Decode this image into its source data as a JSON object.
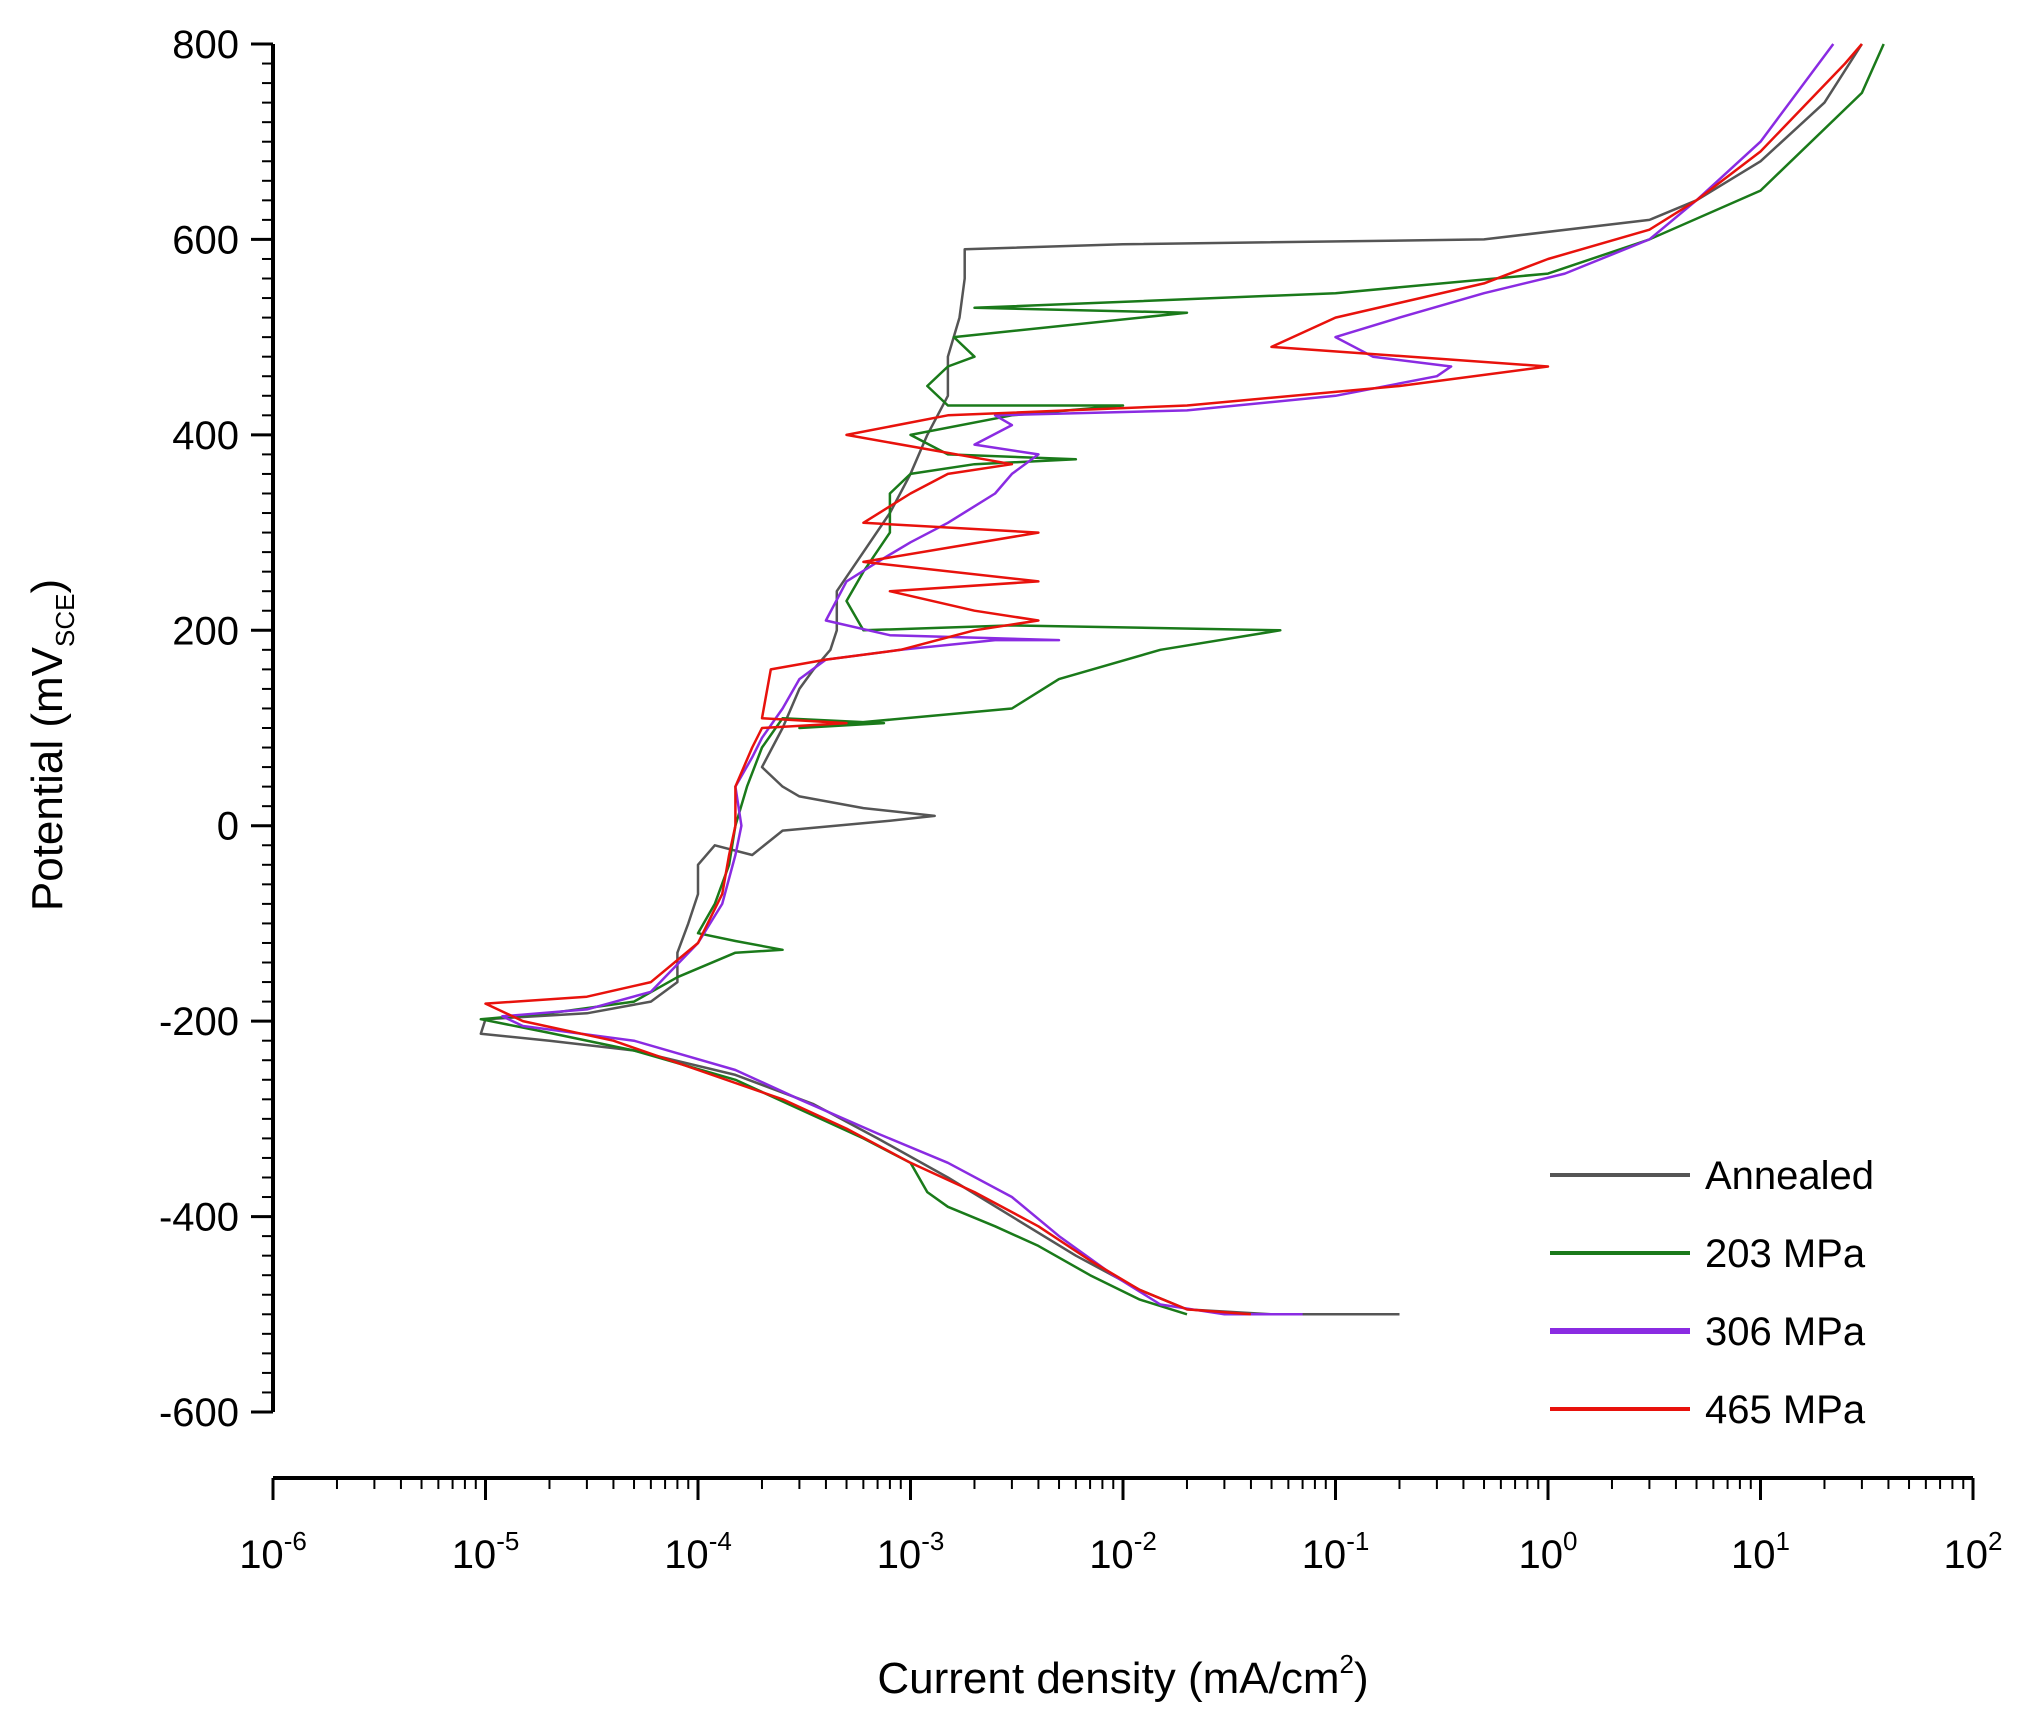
{
  "chart_data": {
    "type": "line",
    "title": "",
    "xlabel": "Current density (mA/cm²)",
    "xlabel_main": "Current density (mA/cm",
    "xlabel_sup": "2",
    "xlabel_end": ")",
    "ylabel": "Potential (mV_SCE)",
    "ylabel_main": "Potential (mV",
    "ylabel_sub": "SCE",
    "ylabel_end": ")",
    "x_scale": "log",
    "xlim": [
      1e-06,
      100
    ],
    "ylim": [
      -600,
      800
    ],
    "x_ticks": [
      {
        "base": "10",
        "exp": "-6",
        "value": 1e-06
      },
      {
        "base": "10",
        "exp": "-5",
        "value": 1e-05
      },
      {
        "base": "10",
        "exp": "-4",
        "value": 0.0001
      },
      {
        "base": "10",
        "exp": "-3",
        "value": 0.001
      },
      {
        "base": "10",
        "exp": "-2",
        "value": 0.01
      },
      {
        "base": "10",
        "exp": "-1",
        "value": 0.1
      },
      {
        "base": "10",
        "exp": "0",
        "value": 1
      },
      {
        "base": "10",
        "exp": "1",
        "value": 10
      },
      {
        "base": "10",
        "exp": "2",
        "value": 100
      }
    ],
    "y_ticks": [
      800,
      600,
      400,
      200,
      0,
      -200,
      -400,
      -600
    ],
    "y_tick_labels": [
      "800",
      "600",
      "400",
      "200",
      "0",
      "-200",
      "-400",
      "-600"
    ],
    "legend_position": "bottom-right",
    "series": [
      {
        "name": "Annealed",
        "color": "#555555",
        "points": [
          [
            0.2,
            -500
          ],
          [
            0.05,
            -500
          ],
          [
            0.02,
            -495
          ],
          [
            0.012,
            -475
          ],
          [
            0.006,
            -440
          ],
          [
            0.003,
            -400
          ],
          [
            0.0015,
            -360
          ],
          [
            0.0007,
            -320
          ],
          [
            0.00035,
            -285
          ],
          [
            0.00015,
            -255
          ],
          [
            5e-05,
            -230
          ],
          [
            2e-05,
            -220
          ],
          [
            9.5e-06,
            -213
          ],
          [
            1e-05,
            -198
          ],
          [
            3e-05,
            -192
          ],
          [
            6e-05,
            -180
          ],
          [
            8e-05,
            -160
          ],
          [
            8e-05,
            -130
          ],
          [
            9e-05,
            -100
          ],
          [
            0.0001,
            -70
          ],
          [
            0.0001,
            -40
          ],
          [
            0.00012,
            -20
          ],
          [
            0.00018,
            -30
          ],
          [
            0.00025,
            -5
          ],
          [
            0.0008,
            5
          ],
          [
            0.0013,
            10
          ],
          [
            0.0006,
            18
          ],
          [
            0.0003,
            30
          ],
          [
            0.00025,
            40
          ],
          [
            0.0002,
            60
          ],
          [
            0.00025,
            100
          ],
          [
            0.0003,
            140
          ],
          [
            0.00035,
            160
          ],
          [
            0.00042,
            180
          ],
          [
            0.00045,
            200
          ],
          [
            0.00045,
            240
          ],
          [
            0.0006,
            280
          ],
          [
            0.0008,
            320
          ],
          [
            0.001,
            360
          ],
          [
            0.0012,
            400
          ],
          [
            0.0015,
            440
          ],
          [
            0.0015,
            480
          ],
          [
            0.0017,
            520
          ],
          [
            0.0018,
            560
          ],
          [
            0.0018,
            590
          ],
          [
            0.01,
            595
          ],
          [
            0.5,
            600
          ],
          [
            3,
            620
          ],
          [
            5,
            640
          ],
          [
            10,
            680
          ],
          [
            20,
            740
          ],
          [
            30,
            800
          ]
        ]
      },
      {
        "name": "203 MPa",
        "color": "#1a7a1a",
        "points": [
          [
            0.02,
            -500
          ],
          [
            0.012,
            -485
          ],
          [
            0.007,
            -460
          ],
          [
            0.004,
            -430
          ],
          [
            0.0025,
            -410
          ],
          [
            0.0015,
            -390
          ],
          [
            0.0012,
            -375
          ],
          [
            0.001,
            -345
          ],
          [
            0.0006,
            -320
          ],
          [
            0.0003,
            -290
          ],
          [
            0.00015,
            -260
          ],
          [
            5e-05,
            -230
          ],
          [
            2e-05,
            -212
          ],
          [
            9.5e-06,
            -198
          ],
          [
            2e-05,
            -192
          ],
          [
            5e-05,
            -180
          ],
          [
            8e-05,
            -155
          ],
          [
            0.00015,
            -130
          ],
          [
            0.00025,
            -127
          ],
          [
            0.00015,
            -118
          ],
          [
            0.0001,
            -110
          ],
          [
            0.00012,
            -80
          ],
          [
            0.00014,
            -40
          ],
          [
            0.00015,
            0
          ],
          [
            0.00017,
            40
          ],
          [
            0.0002,
            80
          ],
          [
            0.00025,
            110
          ],
          [
            0.00075,
            105
          ],
          [
            0.0003,
            100
          ],
          [
            0.003,
            120
          ],
          [
            0.005,
            150
          ],
          [
            0.015,
            180
          ],
          [
            0.055,
            200
          ],
          [
            0.003,
            205
          ],
          [
            0.0006,
            200
          ],
          [
            0.0005,
            230
          ],
          [
            0.0006,
            260
          ],
          [
            0.0008,
            300
          ],
          [
            0.0008,
            340
          ],
          [
            0.001,
            360
          ],
          [
            0.002,
            370
          ],
          [
            0.006,
            375
          ],
          [
            0.0015,
            380
          ],
          [
            0.001,
            400
          ],
          [
            0.003,
            420
          ],
          [
            0.01,
            430
          ],
          [
            0.0015,
            430
          ],
          [
            0.0012,
            450
          ],
          [
            0.0015,
            470
          ],
          [
            0.002,
            480
          ],
          [
            0.0016,
            500
          ],
          [
            0.02,
            525
          ],
          [
            0.002,
            530
          ],
          [
            0.1,
            545
          ],
          [
            1,
            565
          ],
          [
            3,
            600
          ],
          [
            10,
            650
          ],
          [
            30,
            750
          ],
          [
            38,
            800
          ]
        ]
      },
      {
        "name": "306 MPa",
        "color": "#8a2be2",
        "points": [
          [
            0.07,
            -500
          ],
          [
            0.03,
            -500
          ],
          [
            0.015,
            -490
          ],
          [
            0.009,
            -460
          ],
          [
            0.005,
            -420
          ],
          [
            0.003,
            -380
          ],
          [
            0.0015,
            -345
          ],
          [
            0.0007,
            -315
          ],
          [
            0.0003,
            -280
          ],
          [
            0.00015,
            -250
          ],
          [
            5e-05,
            -220
          ],
          [
            1.5e-05,
            -205
          ],
          [
            1.2e-05,
            -195
          ],
          [
            3e-05,
            -188
          ],
          [
            6e-05,
            -170
          ],
          [
            0.0001,
            -120
          ],
          [
            0.00013,
            -80
          ],
          [
            0.00015,
            -30
          ],
          [
            0.00016,
            0
          ],
          [
            0.00015,
            40
          ],
          [
            0.00018,
            70
          ],
          [
            0.0002,
            90
          ],
          [
            0.00025,
            120
          ],
          [
            0.0003,
            150
          ],
          [
            0.0004,
            170
          ],
          [
            0.0009,
            180
          ],
          [
            0.0025,
            190
          ],
          [
            0.005,
            190
          ],
          [
            0.0008,
            195
          ],
          [
            0.0004,
            210
          ],
          [
            0.0005,
            250
          ],
          [
            0.0007,
            270
          ],
          [
            0.001,
            290
          ],
          [
            0.0015,
            310
          ],
          [
            0.0025,
            340
          ],
          [
            0.003,
            360
          ],
          [
            0.004,
            380
          ],
          [
            0.002,
            390
          ],
          [
            0.003,
            410
          ],
          [
            0.0025,
            420
          ],
          [
            0.02,
            425
          ],
          [
            0.1,
            440
          ],
          [
            0.3,
            460
          ],
          [
            0.35,
            470
          ],
          [
            0.15,
            480
          ],
          [
            0.1,
            500
          ],
          [
            0.2,
            520
          ],
          [
            0.5,
            545
          ],
          [
            1.2,
            565
          ],
          [
            3,
            600
          ],
          [
            5,
            640
          ],
          [
            10,
            700
          ],
          [
            22,
            800
          ]
        ]
      },
      {
        "name": "465 MPa",
        "color": "#e8120c",
        "points": [
          [
            0.04,
            -500
          ],
          [
            0.02,
            -495
          ],
          [
            0.012,
            -475
          ],
          [
            0.007,
            -445
          ],
          [
            0.004,
            -410
          ],
          [
            0.002,
            -375
          ],
          [
            0.001,
            -345
          ],
          [
            0.0005,
            -310
          ],
          [
            0.00025,
            -280
          ],
          [
            0.0001,
            -250
          ],
          [
            4e-05,
            -220
          ],
          [
            1.5e-05,
            -200
          ],
          [
            1e-05,
            -182
          ],
          [
            3e-05,
            -175
          ],
          [
            6e-05,
            -160
          ],
          [
            0.0001,
            -120
          ],
          [
            0.00013,
            -70
          ],
          [
            0.00014,
            -30
          ],
          [
            0.00015,
            0
          ],
          [
            0.00015,
            40
          ],
          [
            0.00018,
            80
          ],
          [
            0.0002,
            100
          ],
          [
            0.0005,
            105
          ],
          [
            0.0002,
            110
          ],
          [
            0.00022,
            160
          ],
          [
            0.0004,
            170
          ],
          [
            0.0009,
            180
          ],
          [
            0.002,
            200
          ],
          [
            0.004,
            210
          ],
          [
            0.002,
            220
          ],
          [
            0.0008,
            240
          ],
          [
            0.004,
            250
          ],
          [
            0.0006,
            270
          ],
          [
            0.004,
            300
          ],
          [
            0.0006,
            310
          ],
          [
            0.001,
            340
          ],
          [
            0.0015,
            360
          ],
          [
            0.003,
            370
          ],
          [
            0.0005,
            400
          ],
          [
            0.0015,
            420
          ],
          [
            0.02,
            430
          ],
          [
            0.2,
            450
          ],
          [
            1,
            470
          ],
          [
            0.05,
            490
          ],
          [
            0.1,
            520
          ],
          [
            0.5,
            555
          ],
          [
            1,
            580
          ],
          [
            3,
            610
          ],
          [
            5,
            640
          ],
          [
            10,
            690
          ],
          [
            25,
            780
          ],
          [
            30,
            800
          ]
        ]
      }
    ]
  }
}
